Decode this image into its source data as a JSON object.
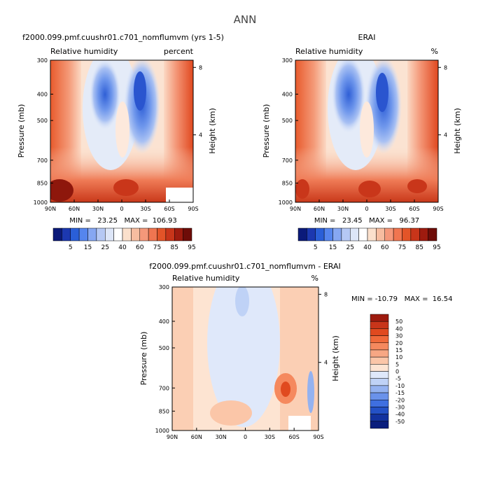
{
  "page_title": "ANN",
  "chart_data": [
    {
      "type": "heatmap",
      "id": "model",
      "title": "f2000.099.pmf.cuushr01.c701_nomflumvm (yrs 1-5)",
      "subtitle_left": "Relative humidity",
      "subtitle_right": "percent",
      "xlabel": "",
      "ylabel": "Pressure (mb)",
      "ylabel_right": "Height (km)",
      "x_ticks": [
        "90N",
        "60N",
        "30N",
        "0",
        "30S",
        "60S",
        "90S"
      ],
      "y_ticks": [
        "300",
        "400",
        "500",
        "700",
        "850",
        "1000"
      ],
      "height_ticks": [
        "8",
        "4"
      ],
      "stats": "MIN =   23.25   MAX =  106.93",
      "colorbar": {
        "orientation": "horizontal",
        "labels": [
          "5",
          "15",
          "25",
          "40",
          "60",
          "75",
          "85",
          "95"
        ],
        "colors": [
          "#0b1a7a",
          "#1c38b0",
          "#2a5fd8",
          "#5585ee",
          "#86a7f2",
          "#b5c8f4",
          "#dde6f8",
          "#ffffff",
          "#fbe0cc",
          "#f7bda0",
          "#f5987a",
          "#f07550",
          "#e35428",
          "#c8351a",
          "#9e1b0f",
          "#6e0c08"
        ]
      }
    },
    {
      "type": "heatmap",
      "id": "obs",
      "title": "ERAI",
      "subtitle_left": "Relative humidity",
      "subtitle_right": "%",
      "xlabel": "",
      "ylabel": "Pressure (mb)",
      "ylabel_right": "Height (km)",
      "x_ticks": [
        "90N",
        "60N",
        "30N",
        "0",
        "30S",
        "60S",
        "90S"
      ],
      "y_ticks": [
        "300",
        "400",
        "500",
        "700",
        "850",
        "1000"
      ],
      "height_ticks": [
        "8",
        "4"
      ],
      "stats": "MIN =   23.45   MAX =   96.37",
      "colorbar": {
        "orientation": "horizontal",
        "labels": [
          "5",
          "15",
          "25",
          "40",
          "60",
          "75",
          "85",
          "95"
        ],
        "colors": [
          "#0b1a7a",
          "#1c38b0",
          "#2a5fd8",
          "#5585ee",
          "#86a7f2",
          "#b5c8f4",
          "#dde6f8",
          "#ffffff",
          "#fbe0cc",
          "#f7bda0",
          "#f5987a",
          "#f07550",
          "#e35428",
          "#c8351a",
          "#9e1b0f",
          "#6e0c08"
        ]
      }
    },
    {
      "type": "heatmap",
      "id": "diff",
      "title": "f2000.099.pmf.cuushr01.c701_nomflumvm - ERAI",
      "subtitle_left": "Relative humidity",
      "subtitle_right": "%",
      "xlabel": "",
      "ylabel": "Pressure (mb)",
      "ylabel_right": "Height (km)",
      "x_ticks": [
        "90N",
        "60N",
        "30N",
        "0",
        "30S",
        "60S",
        "90S"
      ],
      "y_ticks": [
        "300",
        "400",
        "500",
        "700",
        "850",
        "1000"
      ],
      "height_ticks": [
        "8",
        "4"
      ],
      "stats": "MIN = -10.79   MAX =  16.54",
      "colorbar": {
        "orientation": "vertical",
        "labels": [
          "50",
          "40",
          "30",
          "20",
          "15",
          "10",
          "5",
          "0",
          "-5",
          "-10",
          "-15",
          "-20",
          "-30",
          "-40",
          "-50"
        ],
        "colors": [
          "#9e1b0f",
          "#c8351a",
          "#e04a1f",
          "#f06a3a",
          "#f5895e",
          "#f7a784",
          "#fbc6a8",
          "#fde4d2",
          "#dfe8fa",
          "#bfd2f6",
          "#94b2f0",
          "#6a92ea",
          "#3f6fe0",
          "#2451c6",
          "#13329f",
          "#0a1e7d"
        ]
      }
    }
  ]
}
